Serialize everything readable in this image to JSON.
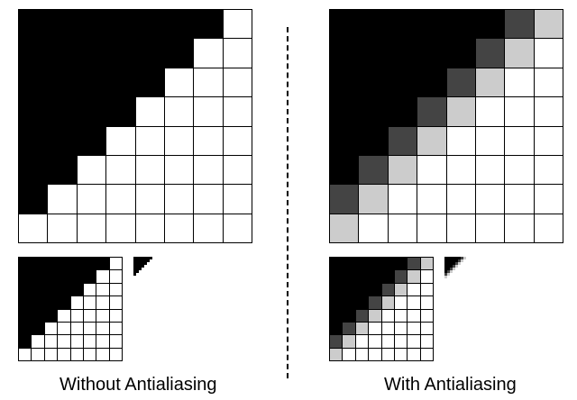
{
  "captions": {
    "without": "Without Antialiasing",
    "with": "With Antialiasing"
  },
  "palette": {
    "dark_gray": "#444444",
    "light_gray": "#cccccc",
    "black": "#000000",
    "white": "#ffffff"
  },
  "patterns": {
    "aliased": [
      "BBBBBBBW",
      "BBBBBBWW",
      "BBBBBWWW",
      "BBBBWWWW",
      "BBBWWWWW",
      "BBWWWWWW",
      "BWWWWWWW",
      "WWWWWWWW"
    ],
    "antialiased": [
      "BBBBBBDL",
      "BBBBBDLW",
      "BBBBDLWW",
      "BBBDLWWW",
      "BBDLWWWW",
      "BDLWWWWW",
      "DLWWWWWW",
      "LWWWWWWW"
    ]
  }
}
